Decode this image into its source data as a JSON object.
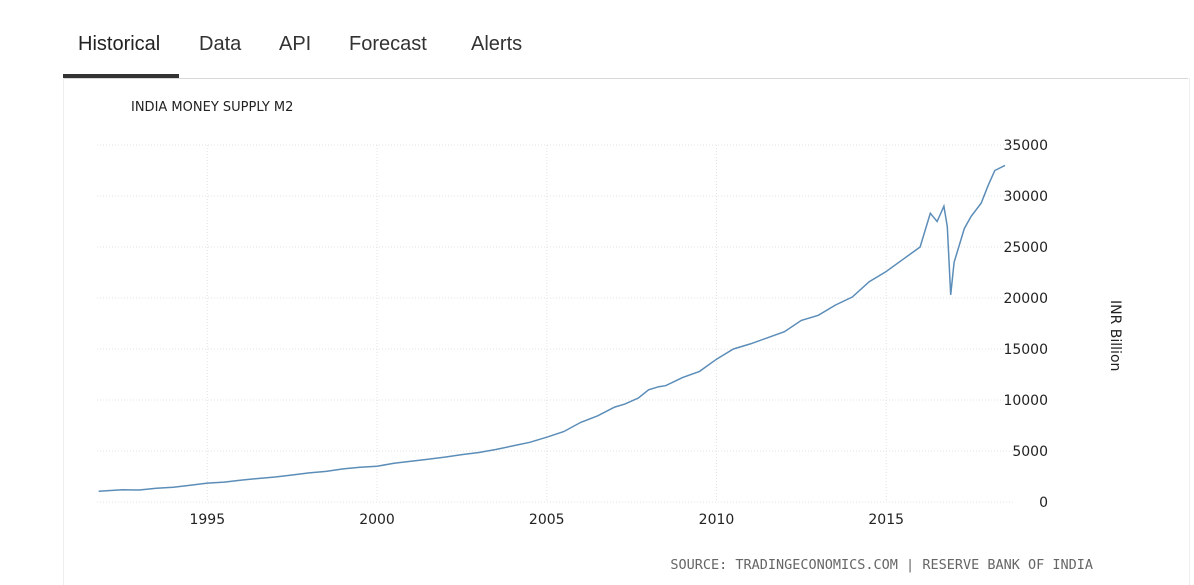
{
  "tabs": [
    {
      "label": "Historical",
      "active": true
    },
    {
      "label": "Data"
    },
    {
      "label": "API"
    },
    {
      "label": "Forecast"
    },
    {
      "label": "Alerts"
    }
  ],
  "chart_data": {
    "type": "line",
    "title": "INDIA MONEY SUPPLY M2",
    "ylabel": "INR Billion",
    "source": "SOURCE: TRADINGECONOMICS.COM | RESERVE BANK OF INDIA",
    "xlim": [
      1991.75,
      2018.5
    ],
    "ylim": [
      0,
      35000
    ],
    "x_ticks": [
      1995,
      2000,
      2005,
      2010,
      2015
    ],
    "y_ticks": [
      0,
      5000,
      10000,
      15000,
      20000,
      25000,
      30000,
      35000
    ],
    "grid": true,
    "line_color": "#5b8db8",
    "series": [
      {
        "x": [
          1991.8,
          1992.5,
          1993,
          1993.5,
          1994,
          1994.5,
          1995,
          1995.5,
          1996,
          1996.5,
          1997,
          1997.5,
          1998,
          1998.5,
          1999,
          1999.5,
          2000,
          2000.5,
          2001,
          2001.5,
          2002,
          2002.5,
          2003,
          2003.5,
          2004,
          2004.5,
          2005,
          2005.5,
          2006,
          2006.5,
          2007,
          2007.3,
          2007.7,
          2008,
          2008.3,
          2008.5,
          2009,
          2009.5,
          2010,
          2010.5,
          2011,
          2011.5,
          2012,
          2012.5,
          2013,
          2013.5,
          2014,
          2014.5,
          2015,
          2015.5,
          2016,
          2016.3,
          2016.5,
          2016.7,
          2016.8,
          2016.9,
          2017,
          2017.3,
          2017.5,
          2017.8,
          2018,
          2018.2,
          2018.5
        ],
        "y": [
          1050,
          1200,
          1180,
          1350,
          1450,
          1650,
          1850,
          1950,
          2150,
          2300,
          2450,
          2650,
          2850,
          3000,
          3250,
          3400,
          3500,
          3800,
          4000,
          4200,
          4400,
          4650,
          4850,
          5150,
          5500,
          5850,
          6350,
          6900,
          7800,
          8450,
          9300,
          9600,
          10200,
          11000,
          11300,
          11400,
          12200,
          12800,
          14000,
          15000,
          15500,
          16100,
          16700,
          17800,
          18300,
          19300,
          20100,
          21600,
          22600,
          23800,
          25000,
          28300,
          27500,
          29000,
          27000,
          20300,
          23500,
          26800,
          28000,
          29300,
          31000,
          32500,
          33000
        ]
      }
    ]
  }
}
